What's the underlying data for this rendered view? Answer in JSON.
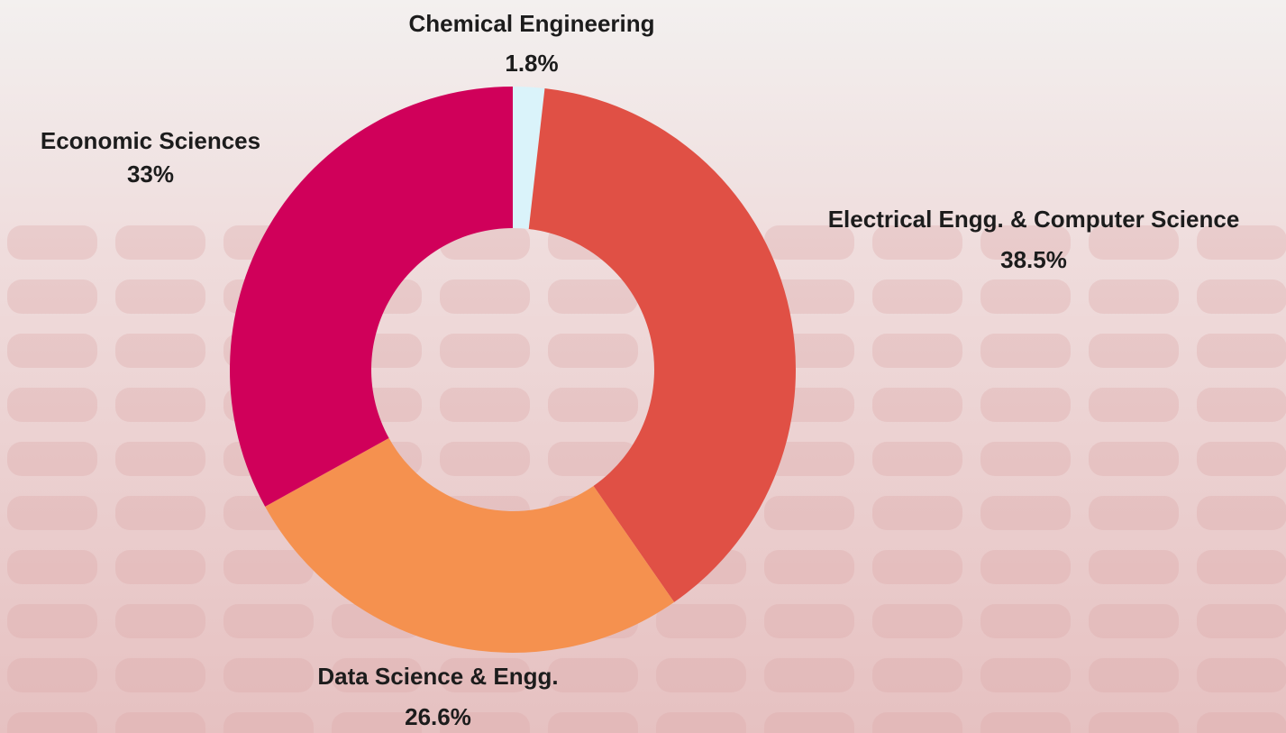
{
  "chart_data": {
    "type": "donut",
    "categories": [
      "Chemical Engineering",
      "Electrical Engg. & Computer Science",
      "Data Science & Engg.",
      "Economic Sciences"
    ],
    "values": [
      1.8,
      38.5,
      26.6,
      33
    ],
    "value_labels": [
      "1.8%",
      "38.5%",
      "26.6%",
      "33%"
    ],
    "colors": [
      "#daf3fa",
      "#e05045",
      "#f5914f",
      "#d0005a"
    ]
  }
}
